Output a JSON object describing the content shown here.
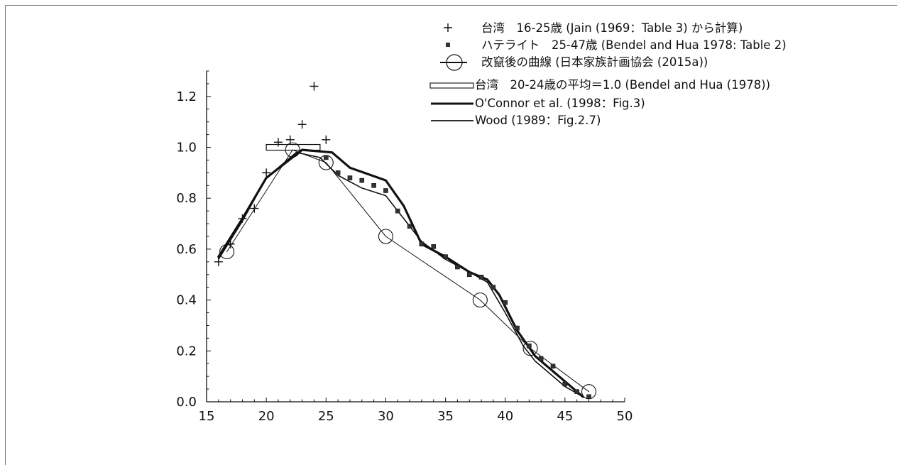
{
  "chart_data": {
    "type": "line",
    "title": "",
    "xlabel": "",
    "ylabel": "",
    "xlim": [
      15,
      50
    ],
    "ylim": [
      0.0,
      1.3
    ],
    "xticks": [
      "15",
      "20",
      "25",
      "30",
      "35",
      "40",
      "45",
      "50"
    ],
    "yticks": [
      "0.0",
      "0.2",
      "0.4",
      "0.6",
      "0.8",
      "1.0",
      "1.2"
    ],
    "grid": false,
    "legend_position": "top-right",
    "series": [
      {
        "name": "台湾　16-25歳 (Jain (1969：Table 3) から計算)",
        "marker": "plus",
        "points": [
          [
            16,
            0.55
          ],
          [
            17,
            0.62
          ],
          [
            18,
            0.72
          ],
          [
            19,
            0.76
          ],
          [
            20,
            0.9
          ],
          [
            21,
            1.02
          ],
          [
            22,
            1.03
          ],
          [
            23,
            1.09
          ],
          [
            24,
            1.24
          ],
          [
            25,
            1.03
          ]
        ]
      },
      {
        "name": "ハテライト　25-47歳 (Bendel and Hua 1978: Table 2)",
        "marker": "square",
        "points": [
          [
            25,
            0.96
          ],
          [
            26,
            0.9
          ],
          [
            27,
            0.88
          ],
          [
            28,
            0.87
          ],
          [
            29,
            0.85
          ],
          [
            30,
            0.83
          ],
          [
            31,
            0.75
          ],
          [
            32,
            0.69
          ],
          [
            33,
            0.62
          ],
          [
            34,
            0.61
          ],
          [
            35,
            0.57
          ],
          [
            36,
            0.53
          ],
          [
            37,
            0.5
          ],
          [
            38,
            0.49
          ],
          [
            39,
            0.45
          ],
          [
            40,
            0.39
          ],
          [
            41,
            0.29
          ],
          [
            42,
            0.22
          ],
          [
            43,
            0.17
          ],
          [
            44,
            0.14
          ],
          [
            45,
            0.07
          ],
          [
            46,
            0.04
          ],
          [
            47,
            0.02
          ]
        ]
      },
      {
        "name": "改竄後の曲線 (日本家族計画協会 (2015a))",
        "marker": "circle",
        "points": [
          [
            16.7,
            0.59
          ],
          [
            22.2,
            0.99
          ],
          [
            25.0,
            0.94
          ],
          [
            30.0,
            0.65
          ],
          [
            37.9,
            0.4
          ],
          [
            42.1,
            0.21
          ],
          [
            47.0,
            0.04
          ]
        ]
      },
      {
        "name": "台湾　20-24歳の平均＝1.0 (Bendel and Hua (1978))",
        "marker": "rect",
        "range": [
          20,
          24.5
        ],
        "value": 1.0
      },
      {
        "name": "O'Connor et al. (1998：Fig.3)",
        "marker": "thick-line",
        "points": [
          [
            16,
            0.57
          ],
          [
            18,
            0.72
          ],
          [
            20,
            0.88
          ],
          [
            23,
            0.99
          ],
          [
            25.5,
            0.98
          ],
          [
            27,
            0.92
          ],
          [
            30,
            0.87
          ],
          [
            31.5,
            0.77
          ],
          [
            33,
            0.62
          ],
          [
            35,
            0.57
          ],
          [
            37,
            0.51
          ],
          [
            38.5,
            0.48
          ],
          [
            39.5,
            0.42
          ],
          [
            41,
            0.28
          ],
          [
            42.5,
            0.18
          ],
          [
            45,
            0.08
          ],
          [
            46.5,
            0.02
          ]
        ]
      },
      {
        "name": "Wood (1989：Fig.2.7)",
        "marker": "line",
        "points": [
          [
            16,
            0.56
          ],
          [
            18,
            0.71
          ],
          [
            20,
            0.88
          ],
          [
            22.5,
            0.98
          ],
          [
            24.5,
            0.96
          ],
          [
            26,
            0.89
          ],
          [
            28,
            0.84
          ],
          [
            30,
            0.81
          ],
          [
            31.5,
            0.72
          ],
          [
            33,
            0.63
          ],
          [
            35,
            0.56
          ],
          [
            37,
            0.51
          ],
          [
            38.5,
            0.47
          ],
          [
            40,
            0.35
          ],
          [
            41.5,
            0.22
          ],
          [
            42.5,
            0.16
          ],
          [
            45,
            0.06
          ],
          [
            46.5,
            0.02
          ]
        ]
      }
    ]
  }
}
